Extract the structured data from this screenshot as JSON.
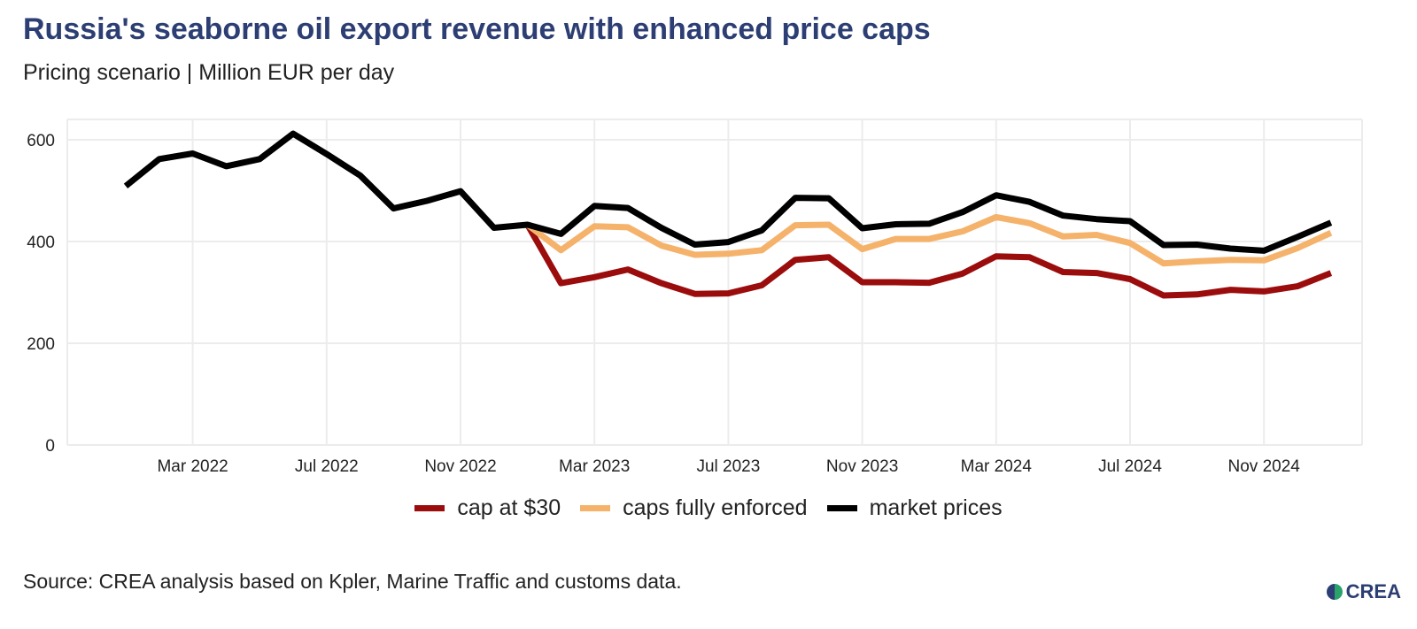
{
  "header": {
    "title": "Russia's seaborne oil export revenue with enhanced price caps",
    "subtitle": "Pricing scenario | Million EUR per day"
  },
  "footer": {
    "source": "Source: CREA analysis based on Kpler, Marine Traffic and customs data.",
    "logo_text": "CREA"
  },
  "chart_data": {
    "type": "line",
    "title": "Russia's seaborne oil export revenue with enhanced price caps",
    "subtitle": "Pricing scenario | Million EUR per day",
    "xlabel": "",
    "ylabel": "",
    "ylim": [
      0,
      640
    ],
    "yticks": [
      0,
      200,
      400,
      600
    ],
    "xticks": [
      {
        "date": "2022-03",
        "label": "Mar 2022"
      },
      {
        "date": "2022-07",
        "label": "Jul 2022"
      },
      {
        "date": "2022-11",
        "label": "Nov 2022"
      },
      {
        "date": "2023-03",
        "label": "Mar 2023"
      },
      {
        "date": "2023-07",
        "label": "Jul 2023"
      },
      {
        "date": "2023-11",
        "label": "Nov 2023"
      },
      {
        "date": "2024-03",
        "label": "Mar 2024"
      },
      {
        "date": "2024-07",
        "label": "Jul 2024"
      },
      {
        "date": "2024-11",
        "label": "Nov 2024"
      }
    ],
    "grid": true,
    "legend_position": "bottom",
    "x": [
      "2022-01",
      "2022-02",
      "2022-03",
      "2022-04",
      "2022-05",
      "2022-06",
      "2022-07",
      "2022-08",
      "2022-09",
      "2022-10",
      "2022-11",
      "2022-12",
      "2023-01",
      "2023-02",
      "2023-03",
      "2023-04",
      "2023-05",
      "2023-06",
      "2023-07",
      "2023-08",
      "2023-09",
      "2023-10",
      "2023-11",
      "2023-12",
      "2024-01",
      "2024-02",
      "2024-03",
      "2024-04",
      "2024-05",
      "2024-06",
      "2024-07",
      "2024-08",
      "2024-09",
      "2024-10",
      "2024-11",
      "2024-12",
      "2025-01"
    ],
    "series": [
      {
        "name": "cap at $30",
        "color": "#9b0c0c",
        "values": [
          null,
          null,
          null,
          null,
          null,
          null,
          null,
          null,
          null,
          null,
          null,
          null,
          433,
          318,
          330,
          345,
          318,
          297,
          298,
          314,
          364,
          369,
          320,
          320,
          319,
          337,
          371,
          369,
          340,
          338,
          326,
          294,
          296,
          305,
          302,
          312,
          338
        ]
      },
      {
        "name": "caps fully enforced",
        "color": "#f5b26b",
        "values": [
          null,
          null,
          null,
          null,
          null,
          null,
          null,
          null,
          null,
          null,
          null,
          null,
          433,
          383,
          430,
          428,
          392,
          374,
          376,
          383,
          432,
          433,
          385,
          405,
          405,
          420,
          448,
          436,
          410,
          413,
          397,
          357,
          361,
          364,
          363,
          387,
          417
        ]
      },
      {
        "name": "market prices",
        "color": "#000000",
        "values": [
          509,
          562,
          573,
          548,
          562,
          612,
          572,
          530,
          465,
          480,
          499,
          427,
          433,
          415,
          470,
          466,
          427,
          394,
          399,
          422,
          486,
          485,
          426,
          434,
          435,
          458,
          491,
          478,
          451,
          444,
          440,
          393,
          394,
          386,
          382,
          409,
          437
        ]
      }
    ]
  }
}
